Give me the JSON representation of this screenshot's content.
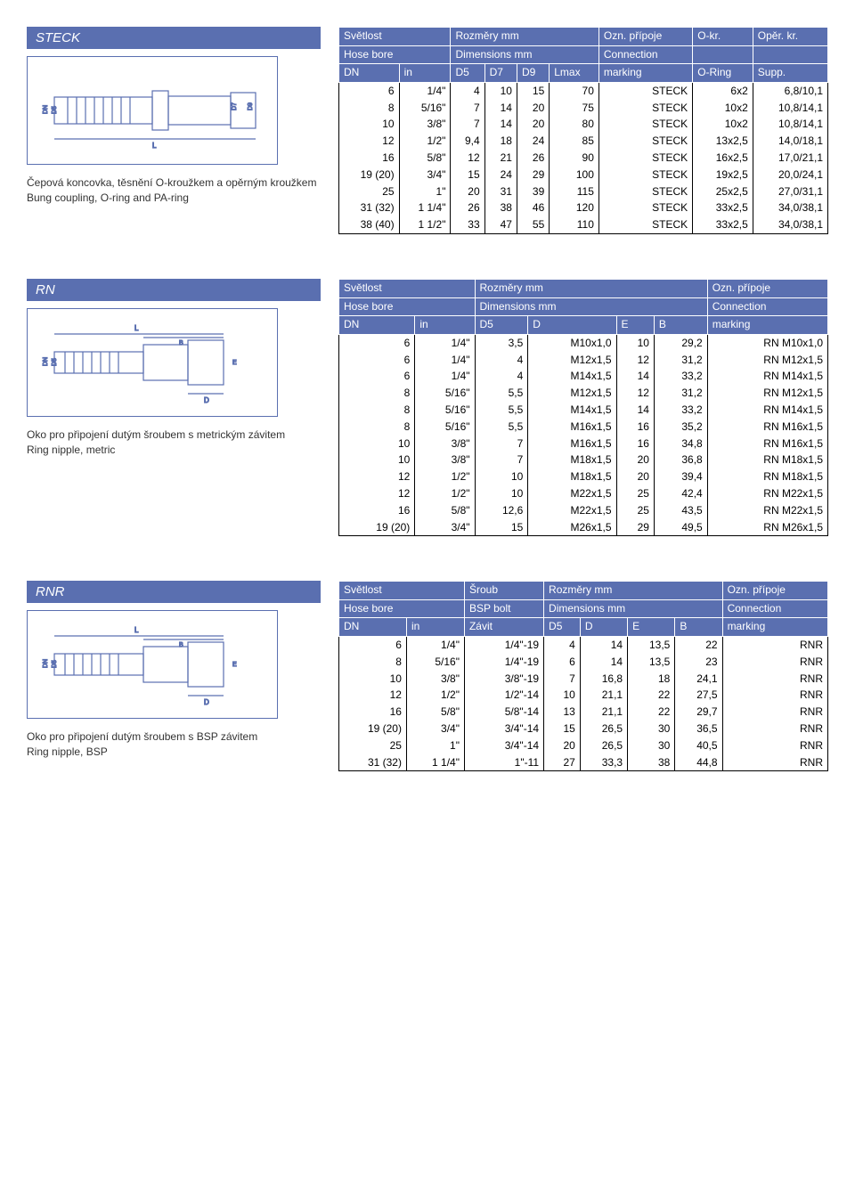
{
  "colors": {
    "header_bg": "#5a6fb0",
    "header_text": "#ffffff",
    "border": "#000000"
  },
  "sections": {
    "steck": {
      "title": "STECK",
      "caption_cz": "Čepová koncovka, těsnění O-kroužkem a opěrným kroužkem",
      "caption_en": "Bung coupling, O-ring and PA-ring",
      "header_top": [
        "Světlost",
        "Rozměry mm",
        "Ozn. přípoje",
        "O-kr.",
        "Opěr. kr."
      ],
      "header_mid": [
        "Hose bore",
        "Dimensions mm",
        "Connection",
        "",
        ""
      ],
      "header_bot": [
        "DN",
        "in",
        "D5",
        "D7",
        "D9",
        "Lmax",
        "marking",
        "O-Ring",
        "Supp."
      ],
      "rows": [
        [
          "6",
          "1/4\"",
          "4",
          "10",
          "15",
          "70",
          "STECK",
          "6x2",
          "6,8/10,1"
        ],
        [
          "8",
          "5/16\"",
          "7",
          "14",
          "20",
          "75",
          "STECK",
          "10x2",
          "10,8/14,1"
        ],
        [
          "10",
          "3/8\"",
          "7",
          "14",
          "20",
          "80",
          "STECK",
          "10x2",
          "10,8/14,1"
        ],
        [
          "12",
          "1/2\"",
          "9,4",
          "18",
          "24",
          "85",
          "STECK",
          "13x2,5",
          "14,0/18,1"
        ],
        [
          "16",
          "5/8\"",
          "12",
          "21",
          "26",
          "90",
          "STECK",
          "16x2,5",
          "17,0/21,1"
        ],
        [
          "19 (20)",
          "3/4\"",
          "15",
          "24",
          "29",
          "100",
          "STECK",
          "19x2,5",
          "20,0/24,1"
        ],
        [
          "25",
          "1\"",
          "20",
          "31",
          "39",
          "115",
          "STECK",
          "25x2,5",
          "27,0/31,1"
        ],
        [
          "31 (32)",
          "1 1/4\"",
          "26",
          "38",
          "46",
          "120",
          "STECK",
          "33x2,5",
          "34,0/38,1"
        ],
        [
          "38 (40)",
          "1 1/2\"",
          "33",
          "47",
          "55",
          "110",
          "STECK",
          "33x2,5",
          "34,0/38,1"
        ]
      ]
    },
    "rn": {
      "title": "RN",
      "caption_cz": "Oko pro připojení dutým šroubem s metrickým závitem",
      "caption_en": "Ring nipple, metric",
      "header_top": [
        "Světlost",
        "Rozměry mm",
        "Ozn. přípoje"
      ],
      "header_mid": [
        "Hose bore",
        "Dimensions mm",
        "Connection"
      ],
      "header_bot": [
        "DN",
        "in",
        "D5",
        "D",
        "E",
        "B",
        "marking"
      ],
      "rows": [
        [
          "6",
          "1/4\"",
          "3,5",
          "M10x1,0",
          "10",
          "29,2",
          "RN M10x1,0"
        ],
        [
          "6",
          "1/4\"",
          "4",
          "M12x1,5",
          "12",
          "31,2",
          "RN M12x1,5"
        ],
        [
          "6",
          "1/4\"",
          "4",
          "M14x1,5",
          "14",
          "33,2",
          "RN M14x1,5"
        ],
        [
          "8",
          "5/16\"",
          "5,5",
          "M12x1,5",
          "12",
          "31,2",
          "RN M12x1,5"
        ],
        [
          "8",
          "5/16\"",
          "5,5",
          "M14x1,5",
          "14",
          "33,2",
          "RN M14x1,5"
        ],
        [
          "8",
          "5/16\"",
          "5,5",
          "M16x1,5",
          "16",
          "35,2",
          "RN M16x1,5"
        ],
        [
          "10",
          "3/8\"",
          "7",
          "M16x1,5",
          "16",
          "34,8",
          "RN M16x1,5"
        ],
        [
          "10",
          "3/8\"",
          "7",
          "M18x1,5",
          "20",
          "36,8",
          "RN M18x1,5"
        ],
        [
          "12",
          "1/2\"",
          "10",
          "M18x1,5",
          "20",
          "39,4",
          "RN M18x1,5"
        ],
        [
          "12",
          "1/2\"",
          "10",
          "M22x1,5",
          "25",
          "42,4",
          "RN M22x1,5"
        ],
        [
          "16",
          "5/8\"",
          "12,6",
          "M22x1,5",
          "25",
          "43,5",
          "RN M22x1,5"
        ],
        [
          "19 (20)",
          "3/4\"",
          "15",
          "M26x1,5",
          "29",
          "49,5",
          "RN M26x1,5"
        ]
      ]
    },
    "rnr": {
      "title": "RNR",
      "caption_cz": "Oko pro připojení dutým šroubem s BSP závitem",
      "caption_en": "Ring nipple, BSP",
      "header_top": [
        "Světlost",
        "Šroub",
        "Rozměry mm",
        "Ozn. přípoje"
      ],
      "header_mid": [
        "Hose bore",
        "BSP bolt",
        "Dimensions mm",
        "Connection"
      ],
      "header_bot": [
        "DN",
        "in",
        "Závit",
        "D5",
        "D",
        "E",
        "B",
        "marking"
      ],
      "rows": [
        [
          "6",
          "1/4\"",
          "1/4\"-19",
          "4",
          "14",
          "13,5",
          "22",
          "RNR"
        ],
        [
          "8",
          "5/16\"",
          "1/4\"-19",
          "6",
          "14",
          "13,5",
          "23",
          "RNR"
        ],
        [
          "10",
          "3/8\"",
          "3/8\"-19",
          "7",
          "16,8",
          "18",
          "24,1",
          "RNR"
        ],
        [
          "12",
          "1/2\"",
          "1/2\"-14",
          "10",
          "21,1",
          "22",
          "27,5",
          "RNR"
        ],
        [
          "16",
          "5/8\"",
          "5/8\"-14",
          "13",
          "21,1",
          "22",
          "29,7",
          "RNR"
        ],
        [
          "19 (20)",
          "3/4\"",
          "3/4\"-14",
          "15",
          "26,5",
          "30",
          "36,5",
          "RNR"
        ],
        [
          "25",
          "1\"",
          "3/4\"-14",
          "20",
          "26,5",
          "30",
          "40,5",
          "RNR"
        ],
        [
          "31 (32)",
          "1 1/4\"",
          "1\"-11",
          "27",
          "33,3",
          "38",
          "44,8",
          "RNR"
        ]
      ]
    }
  }
}
